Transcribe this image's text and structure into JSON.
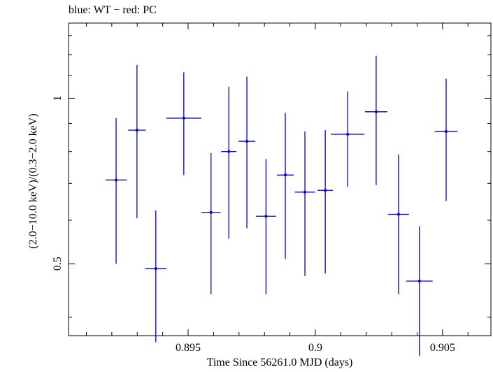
{
  "chart_data": {
    "type": "scatter",
    "title": "blue: WT − red: PC",
    "xlabel": "Time Since 56261.0 MJD (days)",
    "ylabel": "(2.0−10.0 keV)/(0.3−2.0 keV)",
    "x_tick_labels": [
      "0.895",
      "0.9",
      "0.905"
    ],
    "y_tick_labels": [
      "0.5",
      "1"
    ],
    "xlim": [
      0.8903,
      0.9069
    ],
    "ylim": [
      0.37,
      1.37
    ],
    "y_scale": "log",
    "grid": false,
    "legend": "none",
    "series": [
      {
        "color": "#0000cc",
        "points": [
          {
            "x": 0.89217,
            "xerr": 0.00042,
            "y": 0.71,
            "ylo": 0.5,
            "yhi": 0.92
          },
          {
            "x": 0.89299,
            "xerr": 0.00035,
            "y": 0.875,
            "ylo": 0.605,
            "yhi": 1.15
          },
          {
            "x": 0.89373,
            "xerr": 0.00042,
            "y": 0.49,
            "ylo": 0.36,
            "yhi": 0.625
          },
          {
            "x": 0.89483,
            "xerr": 0.00069,
            "y": 0.92,
            "ylo": 0.725,
            "yhi": 1.115
          },
          {
            "x": 0.8959,
            "xerr": 0.00038,
            "y": 0.62,
            "ylo": 0.44,
            "yhi": 0.795
          },
          {
            "x": 0.8966,
            "xerr": 0.0003,
            "y": 0.8,
            "ylo": 0.555,
            "yhi": 1.05
          },
          {
            "x": 0.89731,
            "xerr": 0.00033,
            "y": 0.835,
            "ylo": 0.58,
            "yhi": 1.095
          },
          {
            "x": 0.89806,
            "xerr": 0.0004,
            "y": 0.61,
            "ylo": 0.44,
            "yhi": 0.775
          },
          {
            "x": 0.89882,
            "xerr": 0.00033,
            "y": 0.725,
            "ylo": 0.51,
            "yhi": 0.94
          },
          {
            "x": 0.89959,
            "xerr": 0.0004,
            "y": 0.675,
            "ylo": 0.475,
            "yhi": 0.87
          },
          {
            "x": 0.90039,
            "xerr": 0.0003,
            "y": 0.68,
            "ylo": 0.48,
            "yhi": 0.875
          },
          {
            "x": 0.90127,
            "xerr": 0.00066,
            "y": 0.86,
            "ylo": 0.69,
            "yhi": 1.03
          },
          {
            "x": 0.90239,
            "xerr": 0.00044,
            "y": 0.945,
            "ylo": 0.695,
            "yhi": 1.195
          },
          {
            "x": 0.90327,
            "xerr": 0.00041,
            "y": 0.615,
            "ylo": 0.44,
            "yhi": 0.79
          },
          {
            "x": 0.90409,
            "xerr": 0.00052,
            "y": 0.465,
            "ylo": 0.34,
            "yhi": 0.585
          },
          {
            "x": 0.90514,
            "xerr": 0.00045,
            "y": 0.87,
            "ylo": 0.65,
            "yhi": 1.085
          }
        ]
      }
    ]
  }
}
